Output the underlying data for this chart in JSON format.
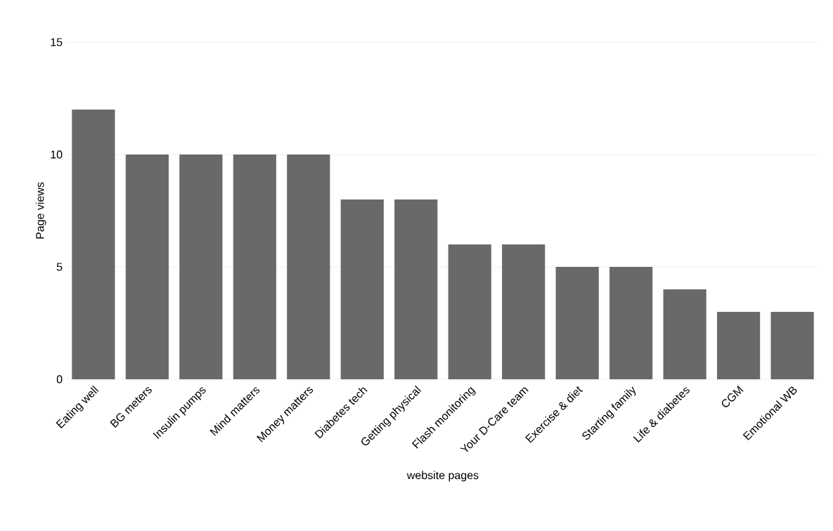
{
  "chart_data": {
    "type": "bar",
    "categories": [
      "Eating well",
      "BG meters",
      "Insulin pumps",
      "Mind matters",
      "Money matters",
      "Diabetes tech",
      "Getting physical",
      "Flash monitoring",
      "Your D-Care team",
      "Exercise & diet",
      "Starting family",
      "Life & diabetes",
      "CGM",
      "Emotional WB"
    ],
    "values": [
      12,
      10,
      10,
      10,
      10,
      8,
      8,
      6,
      6,
      5,
      5,
      4,
      3,
      3
    ],
    "color": "#696969",
    "xlabel": "website pages",
    "ylabel": "Page views",
    "ylim": [
      0,
      15
    ],
    "yticks": [
      0,
      5,
      10,
      15
    ],
    "grid": "y"
  }
}
